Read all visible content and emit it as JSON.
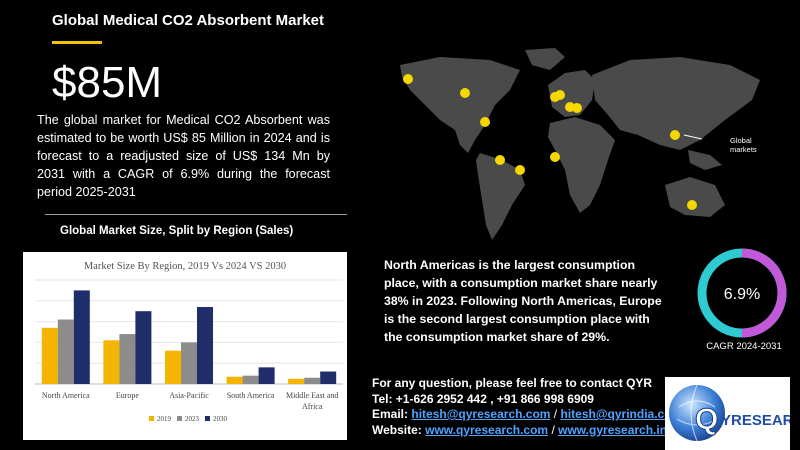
{
  "header": {
    "title": "Global Medical CO2 Absorbent Market",
    "value": "$85M",
    "summary": "The global market for Medical CO2 Absorbent was estimated to be worth US$ 85 Million in 2024 and is forecast to a readjusted size of US$ 134 Mn by 2031 with a CAGR of 6.9% during the forecast period 2025-2031"
  },
  "section_heading": "Global Market Size, Split by Region (Sales)",
  "map": {
    "annotation": "Global markets",
    "marker_color": "#f5d800",
    "land_color": "#4a4a4a"
  },
  "region_text": "North Americas is the largest consumption place, with a consumption market share nearly 38% in 2023. Following North Americas, Europe is the second largest consumption place with the consumption market share of 29%.",
  "cagr": {
    "value": "6.9%",
    "label": "CAGR 2024-2031",
    "ring_colors": [
      "#2ecbd3",
      "#c259d8"
    ]
  },
  "contact": {
    "intro": "For any question, please feel free to contact QYR",
    "tel_label": "Tel:",
    "tel": "+1-626 2952 442 , +91 866 998 6909",
    "email_label": "Email:",
    "email_1": "hitesh@qyresearch.com",
    "email_2": "hitesh@qyrindia.com",
    "separator": "/",
    "website_label": "Website:",
    "website_1": "www.qyresearch.com",
    "website_2": "www.gyresearch.in"
  },
  "logo": {
    "text": "QYRESEARCH"
  },
  "chart_data": {
    "type": "bar",
    "title": "Market Size By Region, 2019 Vs 2024 VS 2030",
    "categories": [
      "North America",
      "Europe",
      "Asia-Pacific",
      "South America",
      "Middle East and Africa"
    ],
    "series": [
      {
        "name": "2019",
        "color": "#f5b400",
        "values": [
          27,
          21,
          16,
          3.5,
          2.5
        ]
      },
      {
        "name": "2023",
        "color": "#8c8c8c",
        "values": [
          31,
          24,
          20,
          4,
          3
        ]
      },
      {
        "name": "2030",
        "color": "#1f2d6b",
        "values": [
          45,
          35,
          37,
          8,
          6
        ]
      }
    ],
    "ylim": [
      0,
      50
    ],
    "grid": true,
    "legend": "bottom"
  }
}
